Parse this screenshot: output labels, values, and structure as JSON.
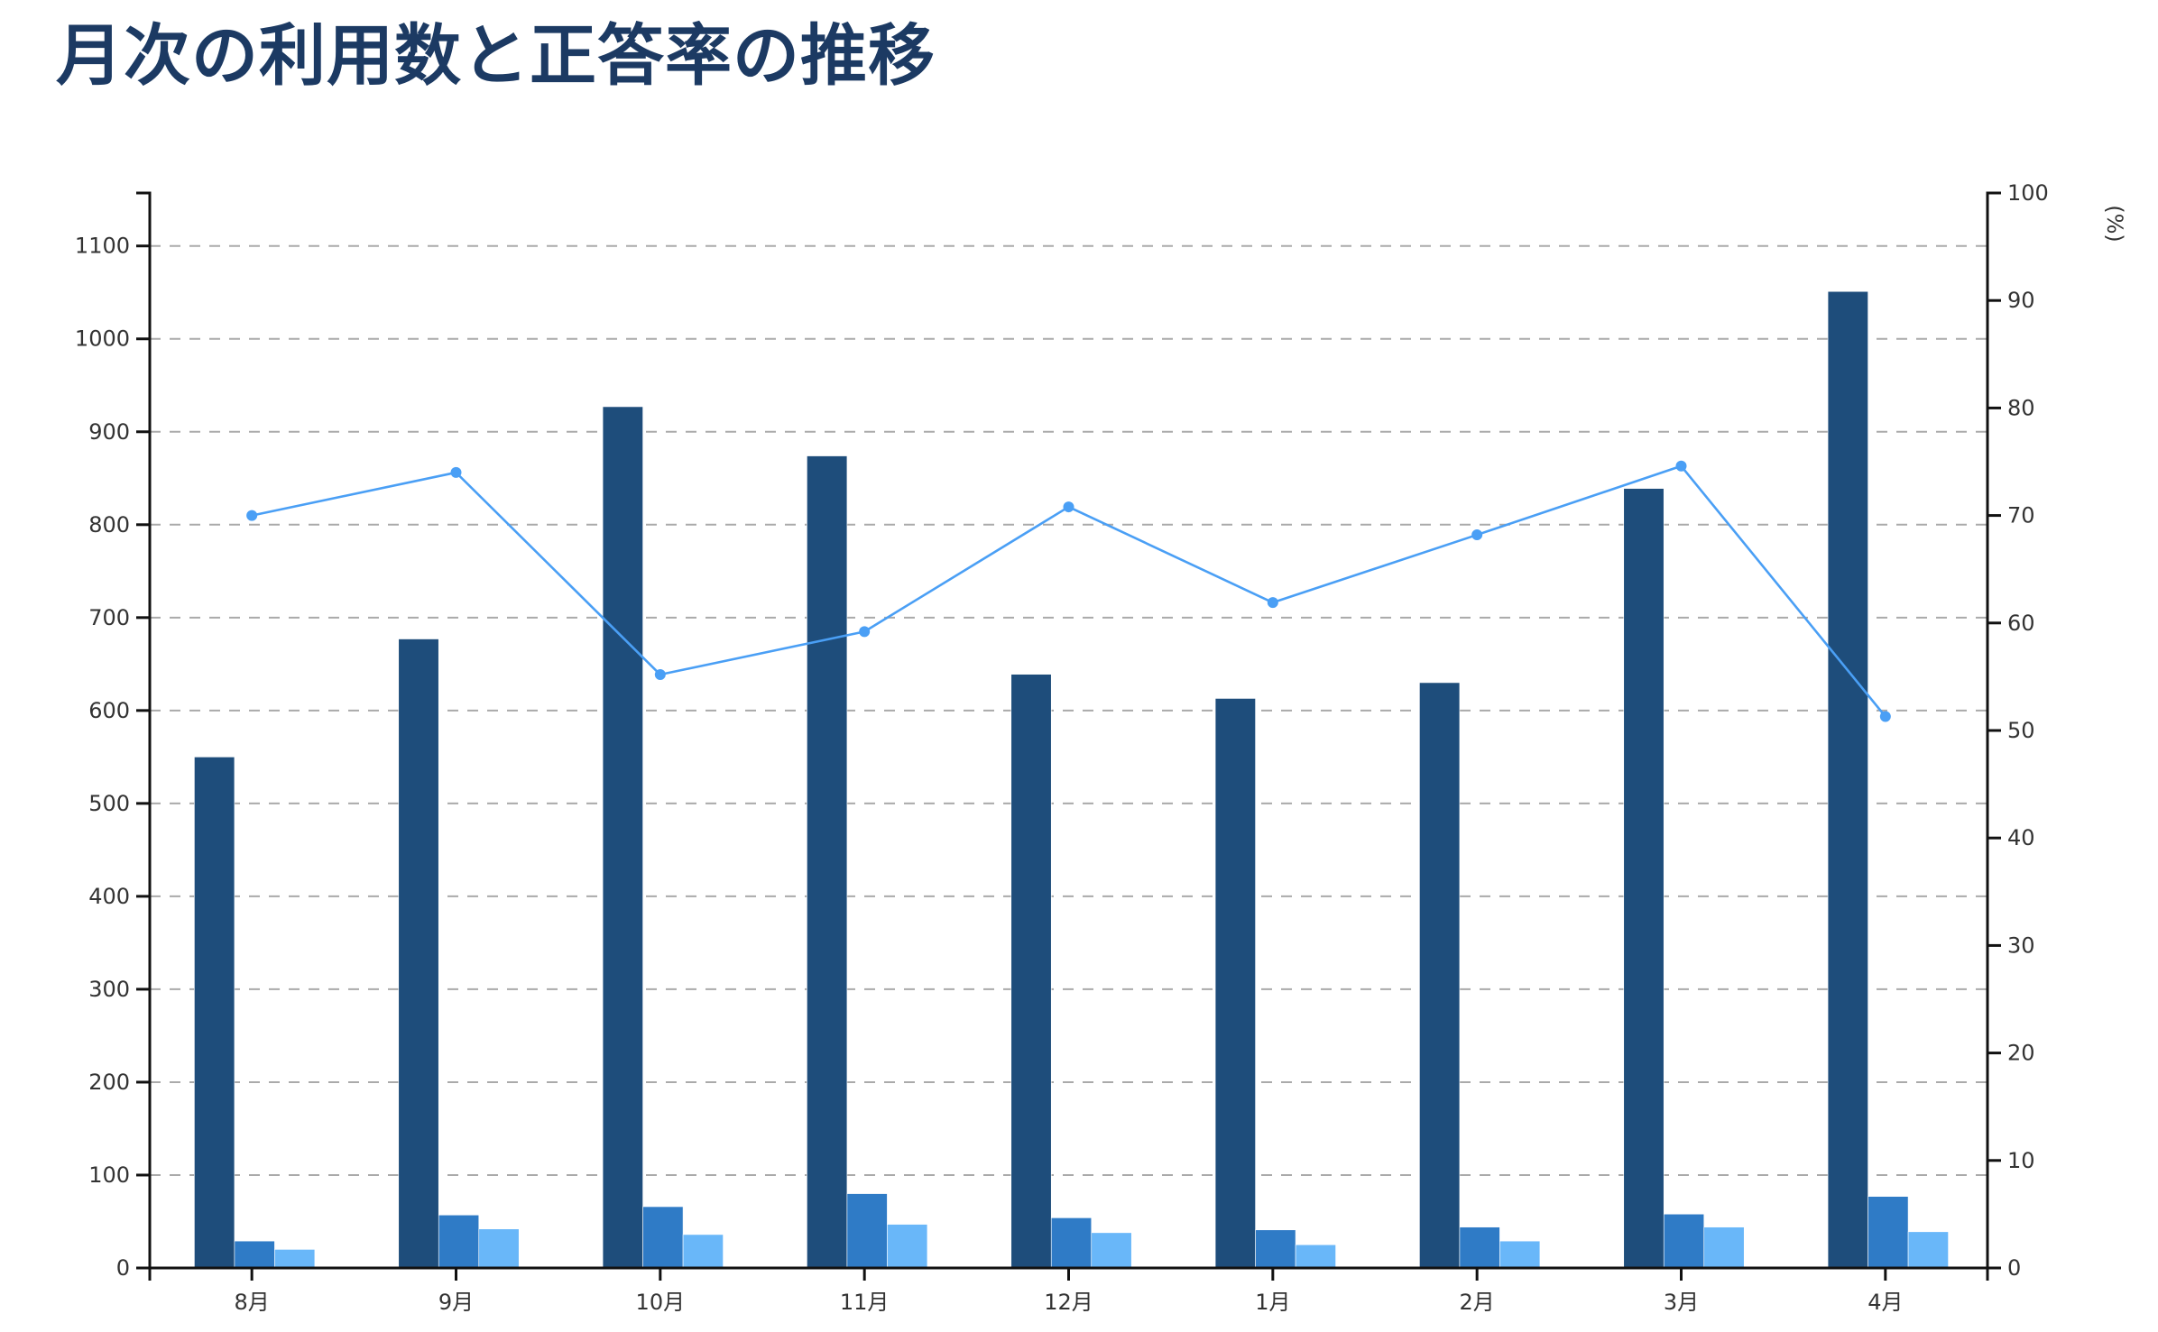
{
  "title": "月次の利用数と正答率の推移",
  "colors": {
    "title": "#1c3a63",
    "series_dark": "#1e4d7b",
    "series_medium": "#2f7bc6",
    "series_light": "#69b7f9",
    "line": "#4a9ff5",
    "grid": "#aaaaaa",
    "axis": "#111111"
  },
  "chart_data": {
    "type": "bar+line",
    "title": "月次の利用数と正答率の推移",
    "categories": [
      "8月",
      "9月",
      "10月",
      "11月",
      "12月",
      "1月",
      "2月",
      "3月",
      "4月"
    ],
    "series": [
      {
        "name": "series_dark",
        "type": "bar",
        "axis": "left",
        "color": "#1e4d7b",
        "values": [
          550,
          677,
          927,
          874,
          639,
          613,
          630,
          839,
          1051
        ]
      },
      {
        "name": "series_medium",
        "type": "bar",
        "axis": "left",
        "color": "#2f7bc6",
        "values": [
          29,
          57,
          66,
          80,
          54,
          41,
          44,
          58,
          77
        ]
      },
      {
        "name": "series_light",
        "type": "bar",
        "axis": "left",
        "color": "#69b7f9",
        "values": [
          20,
          42,
          36,
          47,
          38,
          25,
          29,
          44,
          39
        ]
      },
      {
        "name": "rate",
        "type": "line",
        "axis": "right",
        "color": "#4a9ff5",
        "values": [
          70.0,
          74.0,
          55.2,
          59.2,
          70.8,
          61.9,
          68.2,
          74.6,
          51.3
        ]
      }
    ],
    "left_axis": {
      "label": "",
      "ylim": [
        0,
        1157
      ],
      "ticks": [
        0,
        100,
        200,
        300,
        400,
        500,
        600,
        700,
        800,
        900,
        1000,
        1100
      ]
    },
    "right_axis": {
      "label": "(%)",
      "ylim": [
        0,
        100
      ],
      "ticks": [
        0,
        10,
        20,
        30,
        40,
        50,
        60,
        70,
        80,
        90,
        100
      ]
    },
    "xlabel": "",
    "grid": "horizontal dashed at left-axis ticks",
    "legend": "none"
  }
}
